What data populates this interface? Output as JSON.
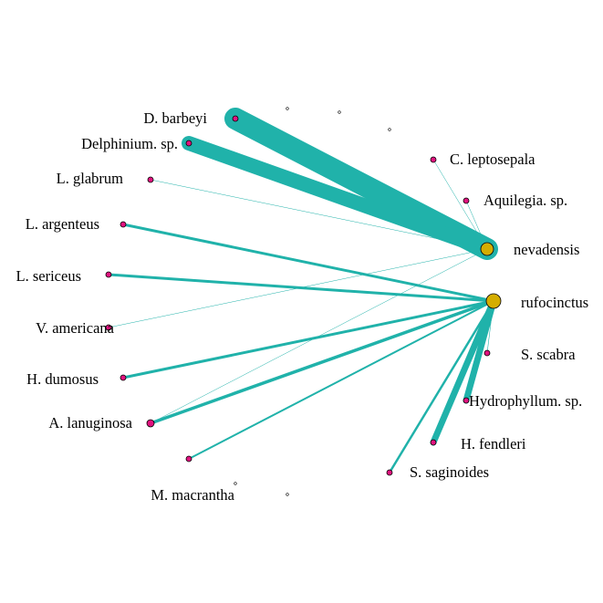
{
  "colors": {
    "edge": "#20b2aa",
    "plant_node": "#e0137f",
    "bee_node": "#d4ad00",
    "node_stroke": "#000000"
  },
  "nodes": [
    {
      "id": "d_barbeyi",
      "label": "D. barbeyi",
      "group": "plant"
    },
    {
      "id": "delphinium_sp",
      "label": "Delphinium. sp.",
      "group": "plant"
    },
    {
      "id": "l_glabrum",
      "label": "L. glabrum",
      "group": "plant"
    },
    {
      "id": "l_argenteus",
      "label": "L. argenteus",
      "group": "plant"
    },
    {
      "id": "l_sericeus",
      "label": "L. sericeus",
      "group": "plant"
    },
    {
      "id": "v_americana",
      "label": "V. americana",
      "group": "plant"
    },
    {
      "id": "h_dumosus",
      "label": "H. dumosus",
      "group": "plant"
    },
    {
      "id": "a_lanuginosa",
      "label": "A. lanuginosa",
      "group": "plant"
    },
    {
      "id": "m_macrantha",
      "label": "M. macrantha",
      "group": "plant"
    },
    {
      "id": "s_saginoides",
      "label": "S. saginoides",
      "group": "plant"
    },
    {
      "id": "h_fendleri",
      "label": "H. fendleri",
      "group": "plant"
    },
    {
      "id": "hydrophyllum_sp",
      "label": "Hydrophyllum. sp.",
      "group": "plant"
    },
    {
      "id": "s_scabra",
      "label": "S. scabra",
      "group": "plant"
    },
    {
      "id": "c_leptosepala",
      "label": "C. leptosepala",
      "group": "plant"
    },
    {
      "id": "aquilegia_sp",
      "label": "Aquilegia. sp.",
      "group": "plant"
    },
    {
      "id": "nevadensis",
      "label": "nevadensis",
      "group": "bee"
    },
    {
      "id": "rufocinctus",
      "label": "rufocinctus",
      "group": "bee"
    },
    {
      "id": "u1",
      "label": "",
      "group": "empty"
    },
    {
      "id": "u2",
      "label": "",
      "group": "empty"
    },
    {
      "id": "u3",
      "label": "",
      "group": "empty"
    },
    {
      "id": "u4",
      "label": "",
      "group": "empty"
    },
    {
      "id": "u5",
      "label": "",
      "group": "empty"
    }
  ],
  "edges": [
    {
      "from": "d_barbeyi",
      "to": "nevadensis",
      "weight": 24
    },
    {
      "from": "delphinium_sp",
      "to": "nevadensis",
      "weight": 16
    },
    {
      "from": "l_glabrum",
      "to": "nevadensis",
      "weight": 0.5
    },
    {
      "from": "c_leptosepala",
      "to": "nevadensis",
      "weight": 0.5
    },
    {
      "from": "aquilegia_sp",
      "to": "nevadensis",
      "weight": 0.5
    },
    {
      "from": "v_americana",
      "to": "nevadensis",
      "weight": 0.5
    },
    {
      "from": "a_lanuginosa",
      "to": "nevadensis",
      "weight": 0.5
    },
    {
      "from": "l_argenteus",
      "to": "rufocinctus",
      "weight": 3
    },
    {
      "from": "l_sericeus",
      "to": "rufocinctus",
      "weight": 3
    },
    {
      "from": "h_dumosus",
      "to": "rufocinctus",
      "weight": 3
    },
    {
      "from": "a_lanuginosa",
      "to": "rufocinctus",
      "weight": 3.5
    },
    {
      "from": "m_macrantha",
      "to": "rufocinctus",
      "weight": 2
    },
    {
      "from": "s_saginoides",
      "to": "rufocinctus",
      "weight": 2.5
    },
    {
      "from": "h_fendleri",
      "to": "rufocinctus",
      "weight": 7
    },
    {
      "from": "hydrophyllum_sp",
      "to": "rufocinctus",
      "weight": 7
    },
    {
      "from": "s_scabra",
      "to": "rufocinctus",
      "weight": 0.6
    }
  ]
}
